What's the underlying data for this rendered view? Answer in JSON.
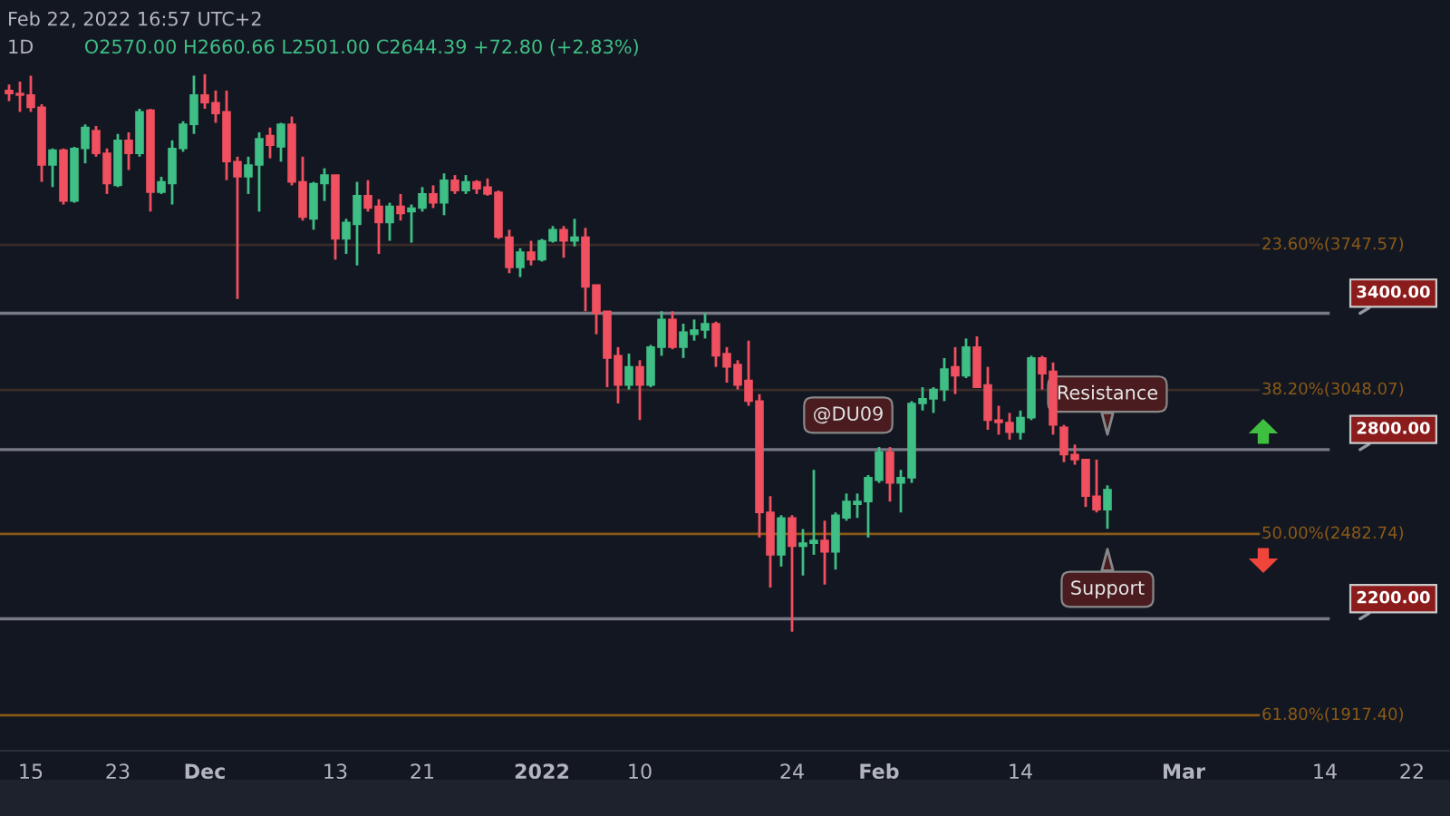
{
  "chart_data": {
    "type": "candlestick",
    "annotations": [
      "Feb 22, 2022 16:57 UTC+2",
      "1D",
      "O2570.00 H2660.66 L2501.00 C2644.39 +72.80 (+2.83%)",
      "@DU09",
      {
        "text": "Resistance",
        "x": "2022-02-22",
        "y": 2800
      },
      {
        "text": "Support",
        "x": "2022-02-22",
        "y": 2482.74
      }
    ],
    "x": [
      "2021-11-13",
      "2021-11-14",
      "2021-11-15",
      "2021-11-16",
      "2021-11-17",
      "2021-11-18",
      "2021-11-19",
      "2021-11-20",
      "2021-11-21",
      "2021-11-22",
      "2021-11-23",
      "2021-11-24",
      "2021-11-25",
      "2021-11-26",
      "2021-11-27",
      "2021-11-28",
      "2021-11-29",
      "2021-11-30",
      "2021-12-01",
      "2021-12-02",
      "2021-12-03",
      "2021-12-04",
      "2021-12-05",
      "2021-12-06",
      "2021-12-07",
      "2021-12-08",
      "2021-12-09",
      "2021-12-10",
      "2021-12-11",
      "2021-12-12",
      "2021-12-13",
      "2021-12-14",
      "2021-12-15",
      "2021-12-16",
      "2021-12-17",
      "2021-12-18",
      "2021-12-19",
      "2021-12-20",
      "2021-12-21",
      "2021-12-22",
      "2021-12-23",
      "2021-12-24",
      "2021-12-25",
      "2021-12-26",
      "2021-12-27",
      "2021-12-28",
      "2021-12-29",
      "2021-12-30",
      "2021-12-31",
      "2022-01-01",
      "2022-01-02",
      "2022-01-03",
      "2022-01-04",
      "2022-01-05",
      "2022-01-06",
      "2022-01-07",
      "2022-01-08",
      "2022-01-09",
      "2022-01-10",
      "2022-01-11",
      "2022-01-12",
      "2022-01-13",
      "2022-01-14",
      "2022-01-15",
      "2022-01-16",
      "2022-01-17",
      "2022-01-18",
      "2022-01-19",
      "2022-01-20",
      "2022-01-21",
      "2022-01-22",
      "2022-01-23",
      "2022-01-24",
      "2022-01-25",
      "2022-01-26",
      "2022-01-27",
      "2022-01-28",
      "2022-01-29",
      "2022-01-30",
      "2022-01-31",
      "2022-02-01",
      "2022-02-02",
      "2022-02-03",
      "2022-02-04",
      "2022-02-05",
      "2022-02-06",
      "2022-02-07",
      "2022-02-08",
      "2022-02-09",
      "2022-02-10",
      "2022-02-11",
      "2022-02-12",
      "2022-02-13",
      "2022-02-14",
      "2022-02-15",
      "2022-02-16",
      "2022-02-17",
      "2022-02-18",
      "2022-02-19",
      "2022-02-20",
      "2022-02-21",
      "2022-02-22"
    ],
    "ohlc": [
      [
        4670,
        4710,
        4600,
        4650
      ],
      [
        4650,
        4730,
        4530,
        4640
      ],
      [
        4640,
        4770,
        4530,
        4560
      ],
      [
        4560,
        4580,
        4100,
        4200
      ],
      [
        4200,
        4300,
        4070,
        4290
      ],
      [
        4290,
        4300,
        3970,
        3990
      ],
      [
        3990,
        4310,
        3980,
        4300
      ],
      [
        4300,
        4450,
        4210,
        4430
      ],
      [
        4410,
        4440,
        4250,
        4270
      ],
      [
        4270,
        4300,
        4030,
        4090
      ],
      [
        4080,
        4390,
        4070,
        4350
      ],
      [
        4350,
        4400,
        4170,
        4270
      ],
      [
        4270,
        4550,
        4250,
        4530
      ],
      [
        4540,
        4550,
        3930,
        4040
      ],
      [
        4040,
        4130,
        4030,
        4100
      ],
      [
        4090,
        4350,
        3970,
        4300
      ],
      [
        4300,
        4470,
        4280,
        4450
      ],
      [
        4450,
        4770,
        4390,
        4640
      ],
      [
        4640,
        4780,
        4550,
        4590
      ],
      [
        4590,
        4670,
        4460,
        4520
      ],
      [
        4530,
        4670,
        4110,
        4220
      ],
      [
        4220,
        4250,
        3470,
        4130
      ],
      [
        4130,
        4250,
        4030,
        4200
      ],
      [
        4200,
        4400,
        3930,
        4360
      ],
      [
        4380,
        4430,
        4240,
        4320
      ],
      [
        4310,
        4460,
        4220,
        4450
      ],
      [
        4450,
        4500,
        4080,
        4100
      ],
      [
        4100,
        4250,
        3880,
        3900
      ],
      [
        3890,
        4100,
        3830,
        4090
      ],
      [
        4090,
        4180,
        3990,
        4140
      ],
      [
        4140,
        4140,
        3670,
        3780
      ],
      [
        3780,
        3890,
        3700,
        3870
      ],
      [
        3860,
        4100,
        3640,
        4020
      ],
      [
        4020,
        4110,
        3930,
        3950
      ],
      [
        3960,
        4000,
        3700,
        3870
      ],
      [
        3870,
        3980,
        3770,
        3960
      ],
      [
        3960,
        4030,
        3880,
        3920
      ],
      [
        3930,
        3970,
        3760,
        3950
      ],
      [
        3950,
        4070,
        3930,
        4030
      ],
      [
        4030,
        4080,
        3950,
        3980
      ],
      [
        3980,
        4150,
        3910,
        4110
      ],
      [
        4110,
        4140,
        4030,
        4050
      ],
      [
        4050,
        4140,
        4030,
        4100
      ],
      [
        4100,
        4110,
        4030,
        4060
      ],
      [
        4070,
        4120,
        4020,
        4030
      ],
      [
        4040,
        4050,
        3780,
        3790
      ],
      [
        3790,
        3830,
        3600,
        3630
      ],
      [
        3630,
        3730,
        3580,
        3710
      ],
      [
        3710,
        3770,
        3640,
        3670
      ],
      [
        3670,
        3780,
        3660,
        3770
      ],
      [
        3770,
        3850,
        3760,
        3830
      ],
      [
        3830,
        3850,
        3680,
        3770
      ],
      [
        3770,
        3890,
        3740,
        3790
      ],
      [
        3790,
        3840,
        3410,
        3530
      ],
      [
        3540,
        3540,
        3300,
        3400
      ],
      [
        3410,
        3410,
        3060,
        3190
      ],
      [
        3200,
        3240,
        2990,
        3070
      ],
      [
        3070,
        3210,
        3050,
        3150
      ],
      [
        3150,
        3180,
        2920,
        3070
      ],
      [
        3070,
        3250,
        3060,
        3240
      ],
      [
        3240,
        3410,
        3200,
        3370
      ],
      [
        3370,
        3410,
        3230,
        3240
      ],
      [
        3240,
        3350,
        3190,
        3310
      ],
      [
        3300,
        3370,
        3270,
        3320
      ],
      [
        3320,
        3400,
        3280,
        3350
      ],
      [
        3350,
        3360,
        3150,
        3200
      ],
      [
        3210,
        3240,
        3080,
        3150
      ],
      [
        3160,
        3180,
        3050,
        3070
      ],
      [
        3090,
        3270,
        2980,
        3000
      ],
      [
        3000,
        3030,
        2470,
        2560
      ],
      [
        2560,
        2620,
        2300,
        2410
      ],
      [
        2410,
        2550,
        2370,
        2540
      ],
      [
        2540,
        2550,
        2160,
        2440
      ],
      [
        2440,
        2500,
        2340,
        2450
      ],
      [
        2450,
        2720,
        2410,
        2460
      ],
      [
        2460,
        2530,
        2310,
        2420
      ],
      [
        2420,
        2560,
        2360,
        2550
      ],
      [
        2540,
        2630,
        2530,
        2600
      ],
      [
        2590,
        2630,
        2540,
        2600
      ],
      [
        2600,
        2700,
        2470,
        2690
      ],
      [
        2680,
        2810,
        2670,
        2790
      ],
      [
        2790,
        2810,
        2600,
        2670
      ],
      [
        2670,
        2720,
        2560,
        2690
      ],
      [
        2690,
        3000,
        2670,
        2990
      ],
      [
        2990,
        3060,
        2960,
        3010
      ],
      [
        3010,
        3060,
        2950,
        3050
      ],
      [
        3050,
        3190,
        3000,
        3140
      ],
      [
        3150,
        3240,
        3030,
        3110
      ],
      [
        3110,
        3280,
        3100,
        3240
      ],
      [
        3240,
        3290,
        3060,
        3060
      ],
      [
        3070,
        3150,
        2880,
        2920
      ],
      [
        2920,
        2980,
        2860,
        2910
      ],
      [
        2910,
        2950,
        2840,
        2870
      ],
      [
        2870,
        2960,
        2840,
        2930
      ],
      [
        2930,
        3200,
        2920,
        3190
      ],
      [
        3190,
        3200,
        3050,
        3120
      ],
      [
        3130,
        3170,
        2860,
        2900
      ],
      [
        2890,
        2900,
        2750,
        2780
      ],
      [
        2780,
        2820,
        2740,
        2760
      ],
      [
        2760,
        2760,
        2580,
        2620
      ],
      [
        2620,
        2760,
        2560,
        2570
      ],
      [
        2570.0,
        2660.66,
        2501.0,
        2644.39
      ]
    ],
    "colors": [
      "#f0505f",
      "#f0505f",
      "#f0505f",
      "#f0505f",
      "#3fbf85",
      "#f0505f",
      "#3fbf85",
      "#3fbf85",
      "#f0505f",
      "#f0505f",
      "#3fbf85",
      "#f0505f",
      "#3fbf85",
      "#f0505f",
      "#3fbf85",
      "#3fbf85",
      "#3fbf85",
      "#3fbf85",
      "#f0505f",
      "#f0505f",
      "#f0505f",
      "#f0505f",
      "#3fbf85",
      "#3fbf85",
      "#f0505f",
      "#3fbf85",
      "#f0505f",
      "#f0505f",
      "#3fbf85",
      "#3fbf85",
      "#f0505f",
      "#3fbf85",
      "#3fbf85",
      "#f0505f",
      "#f0505f",
      "#3fbf85",
      "#f0505f",
      "#3fbf85",
      "#3fbf85",
      "#f0505f",
      "#3fbf85",
      "#f0505f",
      "#3fbf85",
      "#f0505f",
      "#f0505f",
      "#f0505f",
      "#f0505f",
      "#3fbf85",
      "#f0505f",
      "#3fbf85",
      "#3fbf85",
      "#f0505f",
      "#3fbf85",
      "#f0505f",
      "#f0505f",
      "#f0505f",
      "#f0505f",
      "#3fbf85",
      "#f0505f",
      "#3fbf85",
      "#3fbf85",
      "#f0505f",
      "#3fbf85",
      "#3fbf85",
      "#3fbf85",
      "#f0505f",
      "#f0505f",
      "#f0505f",
      "#f0505f",
      "#f0505f",
      "#f0505f",
      "#3fbf85",
      "#f0505f",
      "#3fbf85",
      "#3fbf85",
      "#f0505f",
      "#3fbf85",
      "#3fbf85",
      "#3fbf85",
      "#3fbf85",
      "#3fbf85",
      "#f0505f",
      "#3fbf85",
      "#3fbf85",
      "#3fbf85",
      "#3fbf85",
      "#3fbf85",
      "#f0505f",
      "#3fbf85",
      "#f0505f",
      "#f0505f",
      "#f0505f",
      "#f0505f",
      "#3fbf85",
      "#3fbf85",
      "#f0505f",
      "#f0505f",
      "#f0505f",
      "#f0505f",
      "#f0505f",
      "#f0505f",
      "#3fbf85"
    ],
    "log": true,
    "ylim": [
      1823,
      5313
    ],
    "xlim": [
      "2021-11-12T04:00",
      "2022-03-25T12:00"
    ],
    "xticks": [
      {
        "value": "2021-11-15",
        "label": "15"
      },
      {
        "value": "2021-11-23",
        "label": "23"
      },
      {
        "value": "2021-12-01",
        "label": "Dec"
      },
      {
        "value": "2021-12-13",
        "label": "13"
      },
      {
        "value": "2021-12-21",
        "label": "21"
      },
      {
        "value": "2022-01-01",
        "label": "2022"
      },
      {
        "value": "2022-01-10",
        "label": "10"
      },
      {
        "value": "2022-01-24",
        "label": "24"
      },
      {
        "value": "2022-02-01",
        "label": "Feb"
      },
      {
        "value": "2022-02-14",
        "label": "14"
      },
      {
        "value": "2022-03-01",
        "label": "Mar"
      },
      {
        "value": "2022-03-14",
        "label": "14"
      },
      {
        "value": "2022-03-22",
        "label": "22"
      }
    ],
    "tick_labels": "x",
    "ref_lines": [
      {
        "axis": "y",
        "value": 3400,
        "label": "3400.00",
        "color": "#787b86",
        "line_style": "solid"
      },
      {
        "axis": "y",
        "value": 2800,
        "label": "2800.00",
        "color": "#787b86",
        "line_style": "solid"
      },
      {
        "axis": "y",
        "value": 2200,
        "label": "2200.00",
        "color": "#787b86",
        "line_style": "solid"
      },
      {
        "axis": "y",
        "value": 3747.57,
        "label": "23.60%(3747.57)",
        "color": "#3a2c28",
        "line_style": "solid"
      },
      {
        "axis": "y",
        "value": 3048.07,
        "label": "38.20%(3048.07)",
        "color": "#3a2c28",
        "line_style": "solid"
      },
      {
        "axis": "y",
        "value": 2482.74,
        "label": "50.00%(2482.74)",
        "color": "#8a5a16",
        "line_style": "solid"
      },
      {
        "axis": "y",
        "value": 1917.4,
        "label": "61.80%(1917.40)",
        "color": "#8a5a16",
        "line_style": "solid"
      }
    ],
    "grid": false,
    "legend": false
  }
}
